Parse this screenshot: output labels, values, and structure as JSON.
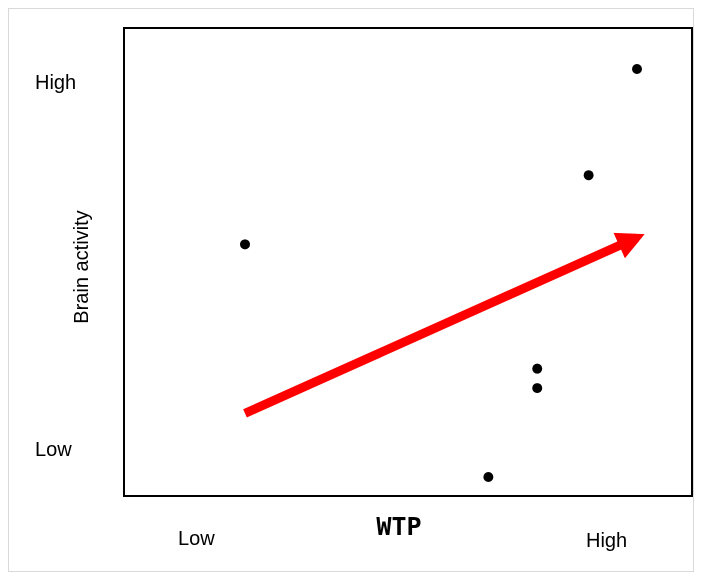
{
  "chart_data": {
    "type": "scatter",
    "xlabel": "WTP",
    "ylabel": "Brain activity",
    "x_tick_labels": {
      "low": "Low",
      "high": "High"
    },
    "y_tick_labels": {
      "low": "Low",
      "high": "High"
    },
    "xlim": [
      0,
      1
    ],
    "ylim": [
      0,
      1
    ],
    "grid": false,
    "points": [
      {
        "x": 0.212,
        "y": 0.552
      },
      {
        "x": 0.695,
        "y": 0.0
      },
      {
        "x": 0.792,
        "y": 0.211
      },
      {
        "x": 0.792,
        "y": 0.257
      },
      {
        "x": 0.894,
        "y": 0.716
      },
      {
        "x": 0.99,
        "y": 0.968
      }
    ],
    "trend_arrow": {
      "from": {
        "x": 0.212,
        "y": 0.151
      },
      "to": {
        "x": 0.99,
        "y": 0.568
      },
      "color": "#ff0000"
    },
    "point_color": "#000000"
  }
}
